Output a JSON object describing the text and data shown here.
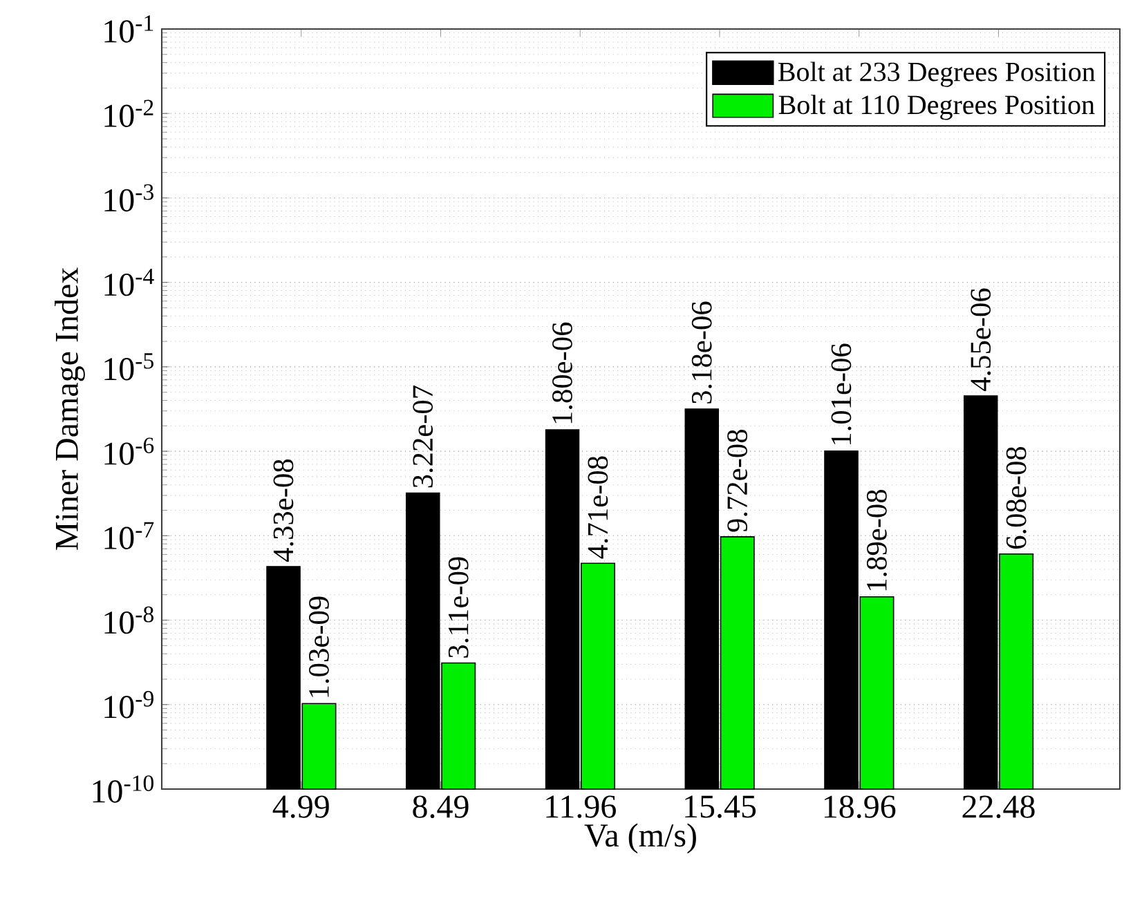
{
  "chart_data": {
    "type": "bar",
    "xlabel": "Va (m/s)",
    "ylabel": "Miner Damage Index",
    "categories": [
      "4.99",
      "8.49",
      "11.96",
      "15.45",
      "18.96",
      "22.48"
    ],
    "series": [
      {
        "name": "Bolt at 233 Degrees Position",
        "color": "#000000",
        "values": [
          4.33e-08,
          3.22e-07,
          1.8e-06,
          3.18e-06,
          1.01e-06,
          4.55e-06
        ],
        "value_labels": [
          "4.33e-08",
          "3.22e-07",
          "1.80e-06",
          "3.18e-06",
          "1.01e-06",
          "4.55e-06"
        ]
      },
      {
        "name": "Bolt at 110 Degrees Position",
        "color": "#00ee00",
        "values": [
          1.03e-09,
          3.11e-09,
          4.71e-08,
          9.72e-08,
          1.89e-08,
          6.08e-08
        ],
        "value_labels": [
          "1.03e-09",
          "3.11e-09",
          "4.71e-08",
          "9.72e-08",
          "1.89e-08",
          "6.08e-08"
        ]
      }
    ],
    "log": "y",
    "ylim": [
      1e-10,
      0.1
    ],
    "yticks": [
      {
        "value": 1e-10,
        "label": "10$^{-10}$"
      },
      {
        "value": 1e-09,
        "label": "10$^{-9}$"
      },
      {
        "value": 1e-08,
        "label": "10$^{-8}$"
      },
      {
        "value": 1e-07,
        "label": "10$^{-7}$"
      },
      {
        "value": 1e-06,
        "label": "10$^{-6}$"
      },
      {
        "value": 1e-05,
        "label": "10$^{-5}$"
      },
      {
        "value": 0.0001,
        "label": "10$^{-4}$"
      },
      {
        "value": 0.001,
        "label": "10$^{-3}$"
      },
      {
        "value": 0.01,
        "label": "10$^{-2}$"
      },
      {
        "value": 0.1,
        "label": "10$^{-1}$"
      }
    ],
    "grid": "y",
    "legend": "top right"
  }
}
